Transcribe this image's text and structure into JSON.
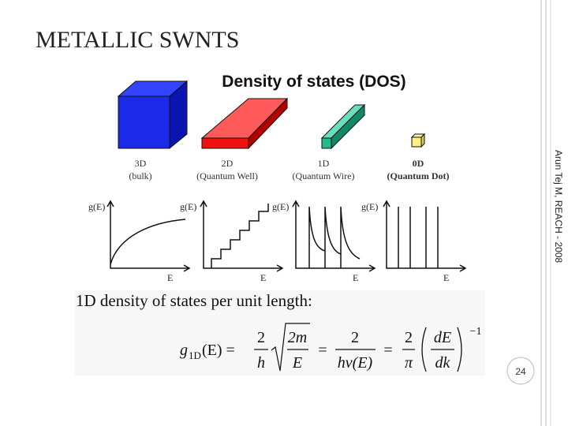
{
  "slide": {
    "title": "METALLIC SWNTS",
    "figure_title": "Density of states (DOS)",
    "dimensions": [
      {
        "name": "3D",
        "desc": "(bulk)"
      },
      {
        "name": "2D",
        "desc": "(Quantum Well)"
      },
      {
        "name": "1D",
        "desc": "(Quantum Wire)"
      },
      {
        "name": "0D",
        "desc": "(Quantum Dot)"
      }
    ],
    "y_axis_label": "g(E)",
    "x_axis_label": "E",
    "equation_intro": "1D density of states per unit length:",
    "equation": {
      "lhs": "g",
      "lhs_sub": "1D",
      "lhs_arg": "(E) =",
      "f1_num": "2",
      "f1_den": "h",
      "f2_num": "2m",
      "f2_den": "E",
      "eq1": "=",
      "f3_num": "2",
      "f3_den": "hv(E)",
      "eq2": "=",
      "f4_num": "2",
      "f4_den": "π",
      "f5_num": "dE",
      "f5_den": "dk",
      "exponent": "−1"
    },
    "page_number": "24",
    "side_text": "Arun Tej M, REACH - 2008"
  }
}
